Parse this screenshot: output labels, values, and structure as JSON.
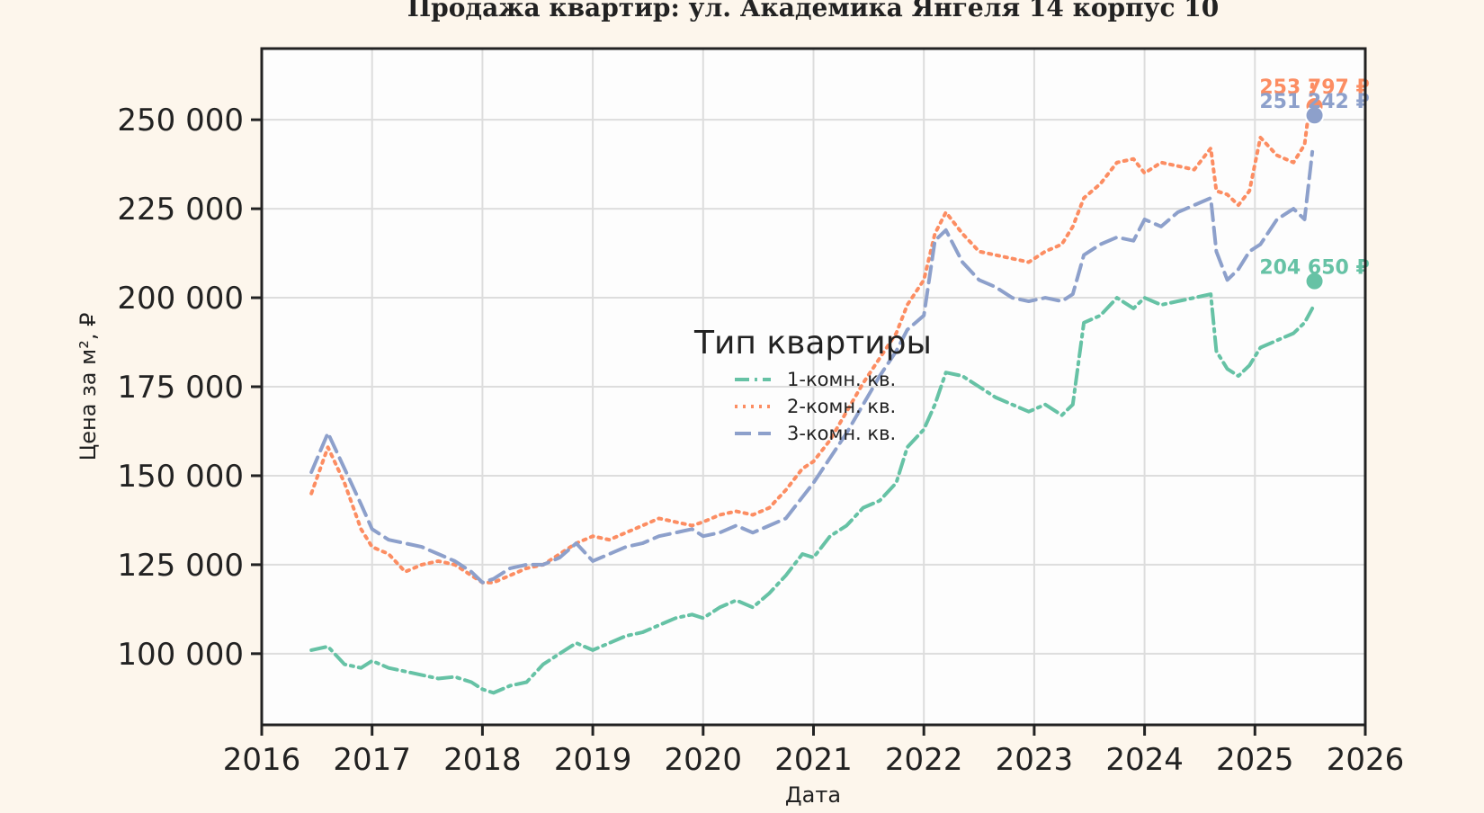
{
  "chart_data": {
    "type": "line",
    "title": "Продажа квартир: ул. Академика Янгеля 14 корпус 10",
    "xlabel": "Дата",
    "ylabel": "Цена за м², ₽",
    "xlim": [
      2016,
      2026
    ],
    "ylim": [
      80000,
      270000
    ],
    "x_ticks": [
      "2016",
      "2017",
      "2018",
      "2019",
      "2020",
      "2021",
      "2022",
      "2023",
      "2024",
      "2025",
      "2026"
    ],
    "y_ticks": [
      100000,
      125000,
      150000,
      175000,
      200000,
      225000,
      250000
    ],
    "y_tick_labels": [
      "100 000",
      "125 000",
      "150 000",
      "175 000",
      "200 000",
      "225 000",
      "250 000"
    ],
    "grid": true,
    "legend": {
      "title": "Тип квартиры",
      "placement": "center"
    },
    "series": [
      {
        "name": "1-комн. кв.",
        "color": "#66c2a5",
        "dash": "dashdot",
        "x": [
          2016.45,
          2016.6,
          2016.75,
          2016.9,
          2017.0,
          2017.15,
          2017.3,
          2017.45,
          2017.6,
          2017.75,
          2017.9,
          2018.0,
          2018.1,
          2018.25,
          2018.4,
          2018.55,
          2018.7,
          2018.85,
          2019.0,
          2019.15,
          2019.3,
          2019.45,
          2019.6,
          2019.75,
          2019.9,
          2020.0,
          2020.15,
          2020.3,
          2020.45,
          2020.6,
          2020.75,
          2020.9,
          2021.0,
          2021.15,
          2021.3,
          2021.45,
          2021.6,
          2021.75,
          2021.85,
          2022.0,
          2022.1,
          2022.2,
          2022.35,
          2022.5,
          2022.65,
          2022.8,
          2022.95,
          2023.1,
          2023.25,
          2023.35,
          2023.45,
          2023.6,
          2023.75,
          2023.9,
          2024.0,
          2024.15,
          2024.3,
          2024.45,
          2024.6,
          2024.65,
          2024.75,
          2024.85,
          2024.95,
          2025.05,
          2025.2,
          2025.35,
          2025.45,
          2025.52
        ],
        "y": [
          101000,
          102000,
          97000,
          96000,
          98000,
          96000,
          95000,
          94000,
          93000,
          93500,
          92000,
          90000,
          89000,
          91000,
          92000,
          97000,
          100000,
          103000,
          101000,
          103000,
          105000,
          106000,
          108000,
          110000,
          111000,
          110000,
          113000,
          115000,
          113000,
          117000,
          122000,
          128000,
          127000,
          133000,
          136000,
          141000,
          143000,
          148000,
          158000,
          163000,
          170000,
          179000,
          178000,
          175000,
          172000,
          170000,
          168000,
          170000,
          167000,
          170000,
          193000,
          195000,
          200000,
          197000,
          200000,
          198000,
          199000,
          200000,
          201000,
          185000,
          180000,
          178000,
          181000,
          186000,
          188000,
          190000,
          193000,
          197000
        ]
      },
      {
        "name": "2-комн. кв.",
        "color": "#fc8d62",
        "dash": "dotted",
        "x": [
          2016.45,
          2016.6,
          2016.75,
          2016.9,
          2017.0,
          2017.15,
          2017.3,
          2017.45,
          2017.6,
          2017.75,
          2017.9,
          2018.0,
          2018.1,
          2018.25,
          2018.4,
          2018.55,
          2018.7,
          2018.85,
          2019.0,
          2019.15,
          2019.3,
          2019.45,
          2019.6,
          2019.75,
          2019.9,
          2020.0,
          2020.15,
          2020.3,
          2020.45,
          2020.6,
          2020.75,
          2020.9,
          2021.0,
          2021.15,
          2021.3,
          2021.45,
          2021.6,
          2021.75,
          2021.85,
          2022.0,
          2022.1,
          2022.2,
          2022.35,
          2022.5,
          2022.65,
          2022.8,
          2022.95,
          2023.1,
          2023.25,
          2023.35,
          2023.45,
          2023.6,
          2023.75,
          2023.9,
          2024.0,
          2024.15,
          2024.3,
          2024.45,
          2024.6,
          2024.65,
          2024.75,
          2024.85,
          2024.95,
          2025.05,
          2025.2,
          2025.35,
          2025.45,
          2025.52
        ],
        "y": [
          145000,
          158000,
          148000,
          135000,
          130000,
          128000,
          123000,
          125000,
          126000,
          125000,
          122000,
          120000,
          120000,
          122000,
          124000,
          125000,
          128000,
          131000,
          133000,
          132000,
          134000,
          136000,
          138000,
          137000,
          136000,
          137000,
          139000,
          140000,
          139000,
          141000,
          146000,
          152000,
          154000,
          160000,
          168000,
          176000,
          183000,
          190000,
          198000,
          205000,
          218000,
          224000,
          218000,
          213000,
          212000,
          211000,
          210000,
          213000,
          215000,
          220000,
          228000,
          232000,
          238000,
          239000,
          235000,
          238000,
          237000,
          236000,
          242000,
          230000,
          229000,
          226000,
          230000,
          245000,
          240000,
          238000,
          243000,
          260000
        ]
      },
      {
        "name": "3-комн. кв.",
        "color": "#8da0cb",
        "dash": "dashed",
        "x": [
          2016.45,
          2016.6,
          2016.75,
          2016.9,
          2017.0,
          2017.15,
          2017.3,
          2017.45,
          2017.6,
          2017.75,
          2017.9,
          2018.0,
          2018.1,
          2018.25,
          2018.4,
          2018.55,
          2018.7,
          2018.85,
          2019.0,
          2019.15,
          2019.3,
          2019.45,
          2019.6,
          2019.75,
          2019.9,
          2020.0,
          2020.15,
          2020.3,
          2020.45,
          2020.6,
          2020.75,
          2020.9,
          2021.0,
          2021.15,
          2021.3,
          2021.45,
          2021.6,
          2021.75,
          2021.85,
          2022.0,
          2022.1,
          2022.2,
          2022.35,
          2022.5,
          2022.65,
          2022.8,
          2022.95,
          2023.1,
          2023.25,
          2023.35,
          2023.45,
          2023.6,
          2023.75,
          2023.9,
          2024.0,
          2024.15,
          2024.3,
          2024.45,
          2024.6,
          2024.65,
          2024.75,
          2024.85,
          2024.95,
          2025.05,
          2025.2,
          2025.35,
          2025.45,
          2025.52
        ],
        "y": [
          151000,
          162000,
          152000,
          142000,
          135000,
          132000,
          131000,
          130000,
          128000,
          126000,
          123000,
          120000,
          121000,
          124000,
          125000,
          125000,
          127000,
          131000,
          126000,
          128000,
          130000,
          131000,
          133000,
          134000,
          135000,
          133000,
          134000,
          136000,
          134000,
          136000,
          138000,
          144000,
          148000,
          155000,
          162000,
          170000,
          178000,
          185000,
          191000,
          195000,
          216000,
          219000,
          210000,
          205000,
          203000,
          200000,
          199000,
          200000,
          199000,
          201000,
          212000,
          215000,
          217000,
          216000,
          222000,
          220000,
          224000,
          226000,
          228000,
          213000,
          205000,
          208000,
          213000,
          215000,
          222000,
          225000,
          222000,
          241000
        ]
      }
    ],
    "end_points": [
      {
        "series": "2-комн. кв.",
        "x": 2025.54,
        "y": 253797,
        "label": "253 797 ₽",
        "color": "#fc8d62"
      },
      {
        "series": "3-комн. кв.",
        "x": 2025.54,
        "y": 251242,
        "label": "251 242 ₽",
        "color": "#8da0cb"
      },
      {
        "series": "1-комн. кв.",
        "x": 2025.54,
        "y": 204650,
        "label": "204 650 ₽",
        "color": "#66c2a5"
      }
    ]
  }
}
